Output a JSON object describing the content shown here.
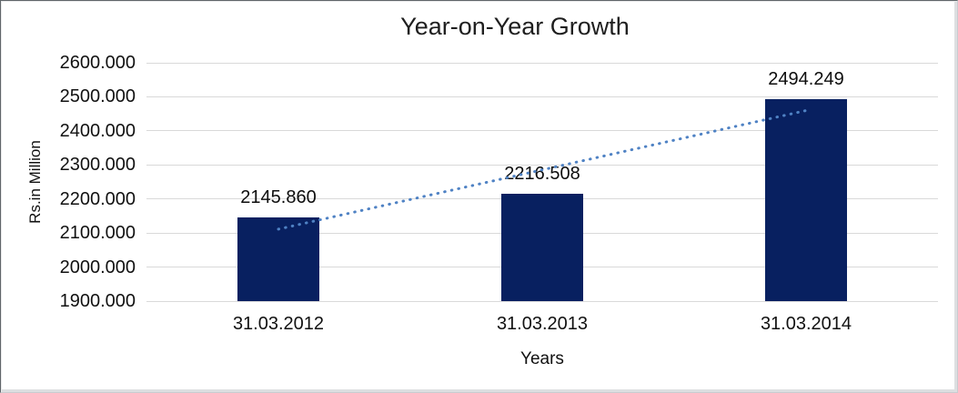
{
  "chart_data": {
    "type": "bar",
    "title": "Year-on-Year Growth",
    "xlabel": "Years",
    "ylabel": "Rs.in Million",
    "categories": [
      "31.03.2012",
      "31.03.2013",
      "31.03.2014"
    ],
    "values": [
      2145.86,
      2216.508,
      2494.249
    ],
    "data_labels": [
      "2145.860",
      "2216.508",
      "2494.249"
    ],
    "ylim": [
      1900,
      2600
    ],
    "y_tick_step": 100,
    "y_tick_labels": [
      "2600.000",
      "2500.000",
      "2400.000",
      "2300.000",
      "2200.000",
      "2100.000",
      "2000.000",
      "1900.000"
    ],
    "grid": true,
    "legend": false,
    "trendline": {
      "type": "linear",
      "style": "dotted"
    }
  },
  "colors": {
    "bar": "#082060",
    "trendline": "#4f82c4",
    "gridline": "#d9d9d9",
    "text": "#111111"
  }
}
